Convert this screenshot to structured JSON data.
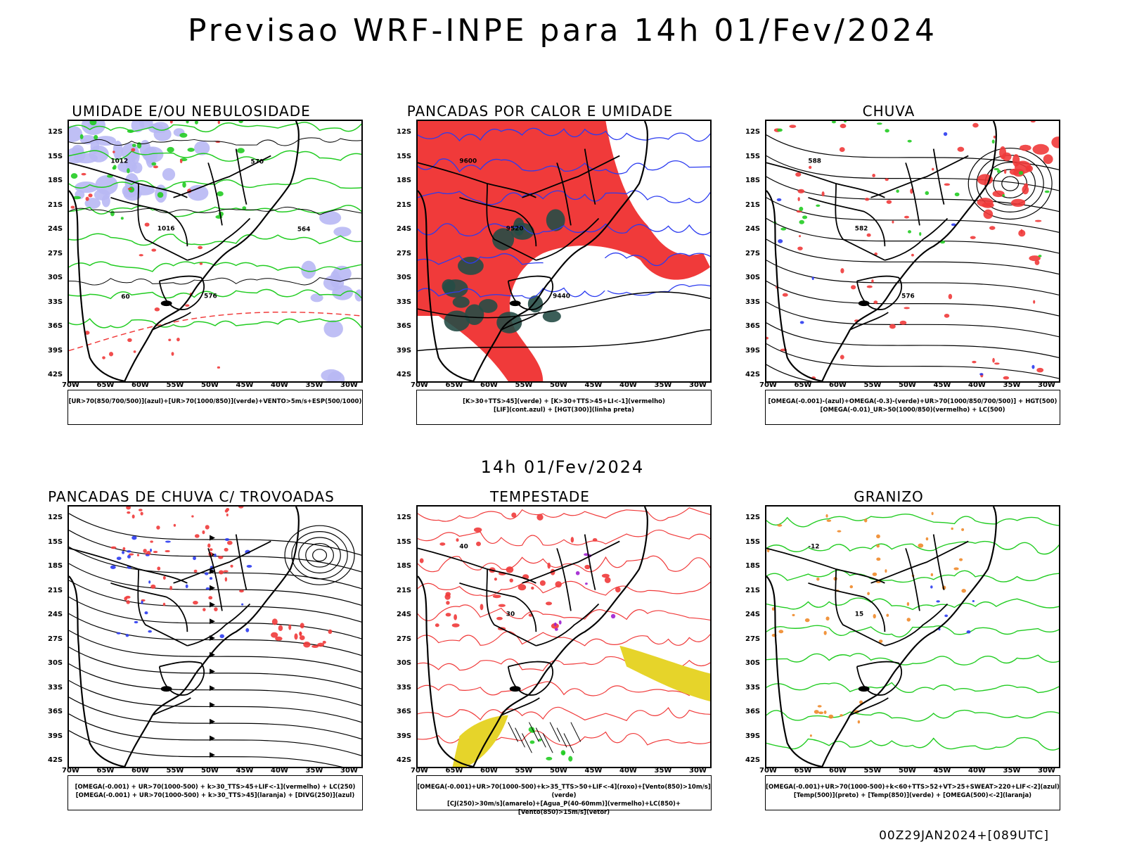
{
  "title": "Previsao WRF-INPE  para 14h 01/Fev/2024",
  "mid_title": "14h 01/Fev/2024",
  "footer": "00Z29JAN2024+[089UTC]",
  "lat_labels": [
    "12S",
    "15S",
    "18S",
    "21S",
    "24S",
    "27S",
    "30S",
    "33S",
    "36S",
    "39S",
    "42S"
  ],
  "lon_labels": [
    "70W",
    "65W",
    "60W",
    "55W",
    "50W",
    "45W",
    "40W",
    "35W",
    "30W"
  ],
  "panels": [
    {
      "title": "UMIDADE E/OU NEBULOSIDADE",
      "legend": [
        "[UR>70(850/700/500)](azul)+[UR>70(1000/850)](verde)+VENTO>5m/s+ESP(500/1000)"
      ],
      "labels": [
        "1012",
        "1016",
        "576",
        "570",
        "564",
        "60"
      ]
    },
    {
      "title": "PANCADAS POR CALOR E UMIDADE",
      "legend": [
        "[K>30+TTS>45](verde)  +  [K>30+TTS>45+LI<-1](vermelho)",
        "[LIF](cont.azul)  +  [HGT(300)](linha preta)"
      ],
      "labels": [
        "9600",
        "9520",
        "9440"
      ]
    },
    {
      "title": "CHUVA",
      "legend": [
        "[OMEGA(-0.001)-(azul)+OMEGA(-0.3)-(verde)+UR>70(1000/850/700/500)]  +  HGT(500)",
        "[OMEGA(-0.01)_UR>50(1000/850)(vermelho)  +  LC(500)"
      ],
      "labels": [
        "588",
        "582",
        "576"
      ]
    },
    {
      "title": "PANCADAS DE CHUVA C/ TROVOADAS",
      "legend": [
        "[OMEGA(-0.001)  +  UR>70(1000-500)  +  k>30_TTS>45+LIF<-1](vermelho)  +  LC(250)",
        "[OMEGA(-0.001)  +  UR>70(1000-500)  +  k>30_TTS>45](laranja)  +  [DIVG(250)](azul)"
      ],
      "labels": []
    },
    {
      "title": "TEMPESTADE",
      "legend": [
        "[OMEGA(-0.001)+UR>70(1000-500)+k>35_TTS>50+LIF<-4](roxo)+[Vento(850)>10m/s](verde)",
        "[CJ(250)>30m/s](amarelo)+[Agua_P(40-60mm)](vermelho)+LC(850)+[Vento(850)>15m/s](vetor)"
      ],
      "labels": [
        "40",
        "30"
      ]
    },
    {
      "title": "GRANIZO",
      "legend": [
        "[OMEGA(-0.001)+UR>70(1000-500)+k<60+TTS>52+VT>25+SWEAT>220+LIF<-2](azul)",
        "[Temp(500)](preto)  +  [Temp(850)](verde)  +  [OMEGA(500)<-2](laranja)"
      ],
      "labels": [
        "-12",
        "15"
      ]
    }
  ],
  "colors": {
    "red": "#f03a3a",
    "green": "#22cc22",
    "blue": "#2b3bf0",
    "lavender": "#b8b8f4",
    "darkgreen": "#264d46",
    "yellow": "#e6d42a",
    "orange": "#f08a2a",
    "purple": "#a020d0"
  }
}
